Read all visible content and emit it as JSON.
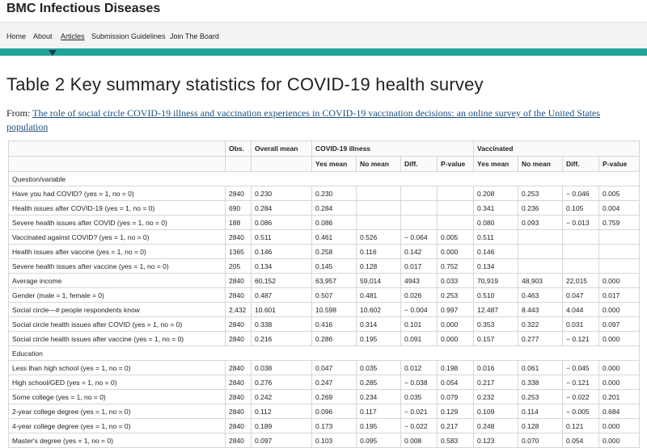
{
  "header": {
    "site_title": "BMC Infectious Diseases",
    "nav": [
      "Home",
      "About",
      "Articles",
      "Submission Guidelines",
      "Join The Board"
    ],
    "active_nav": 2
  },
  "article": {
    "title": "Table 2 Key summary statistics for COVID-19 health survey",
    "from_label": "From:",
    "from_link": "The role of social circle COVID-19 illness and vaccination experiences in COVID-19 vaccination decisions: an online survey of the United States population"
  },
  "table": {
    "header_top": [
      "Obs.",
      "Overall mean",
      "COVID-19 illness",
      "Vaccinated"
    ],
    "header_sub": [
      "Yes mean",
      "No mean",
      "Diff.",
      "P-value",
      "Yes mean",
      "No mean",
      "Diff.",
      "P-value"
    ],
    "rows": [
      {
        "section": "Question/variable"
      },
      {
        "label": "Have you had COVID? (yes = 1, no = 0)",
        "cells": [
          "2840",
          "0.230",
          "0.230",
          null,
          null,
          null,
          "0.208",
          "0.253",
          "− 0.046",
          "0.005"
        ]
      },
      {
        "label": "Health issues after COVID-19 (yes = 1, no = 0)",
        "cells": [
          "690",
          "0.284",
          "0.284",
          null,
          null,
          null,
          "0.341",
          "0.236",
          "0.105",
          "0.004"
        ]
      },
      {
        "label": "Severe health issues after COVID (yes = 1, no = 0)",
        "cells": [
          "188",
          "0.086",
          "0.086",
          null,
          null,
          null,
          "0.080",
          "0.093",
          "− 0.013",
          "0.759"
        ]
      },
      {
        "label": "Vaccinated against COVID? (yes = 1, no = 0)",
        "cells": [
          "2840",
          "0.511",
          "0.461",
          "0.526",
          "− 0.064",
          "0.005",
          "0.511",
          null,
          null,
          null
        ]
      },
      {
        "label": "Health issues after vaccine (yes = 1, no = 0)",
        "cells": [
          "1365",
          "0.146",
          "0.258",
          "0.116",
          "0.142",
          "0.000",
          "0.146",
          null,
          null,
          null
        ]
      },
      {
        "label": "Severe health issues after vaccine (yes = 1, no = 0)",
        "cells": [
          "205",
          "0.134",
          "0.145",
          "0.128",
          "0.017",
          "0.752",
          "0.134",
          null,
          null,
          null
        ]
      },
      {
        "label": "Average income",
        "cells": [
          "2840",
          "60,152",
          "63,957",
          "59,014",
          "4943",
          "0.033",
          "70,919",
          "48,903",
          "22,015",
          "0.000"
        ]
      },
      {
        "label": "Gender (male = 1, female = 0)",
        "cells": [
          "2840",
          "0.487",
          "0.507",
          "0.481",
          "0.026",
          "0.253",
          "0.510",
          "0.463",
          "0.047",
          "0.017"
        ]
      },
      {
        "label": "Social circle—# people respondents know",
        "cells": [
          "2,432",
          "10.601",
          "10.598",
          "10.602",
          "− 0.004",
          "0.997",
          "12.487",
          "8.443",
          "4.044",
          "0.000"
        ]
      },
      {
        "label": "Social circle health issues after COVID (yes = 1, no = 0)",
        "cells": [
          "2840",
          "0.338",
          "0.416",
          "0.314",
          "0.101",
          "0.000",
          "0.353",
          "0.322",
          "0.031",
          "0.097"
        ]
      },
      {
        "label": "Social circle health issues  after vaccine (yes = 1, no = 0)",
        "cells": [
          "2840",
          "0.216",
          "0.286",
          "0.195",
          "0.091",
          "0.000",
          "0.157",
          "0.277",
          "− 0.121",
          "0.000"
        ]
      },
      {
        "section": "Education"
      },
      {
        "label": "Less than high school (yes = 1, no = 0)",
        "cells": [
          "2840",
          "0.038",
          "0.047",
          "0.035",
          "0.012",
          "0.198",
          "0.016",
          "0.061",
          "− 0.045",
          "0.000"
        ]
      },
      {
        "label": "High school/GED (yes = 1, no = 0)",
        "cells": [
          "2840",
          "0.276",
          "0.247",
          "0.285",
          "− 0.038",
          "0.054",
          "0.217",
          "0.338",
          "− 0.121",
          "0.000"
        ]
      },
      {
        "label": "Some college (yes = 1, no = 0)",
        "cells": [
          "2840",
          "0.242",
          "0.269",
          "0.234",
          "0.035",
          "0.079",
          "0.232",
          "0.253",
          "− 0.022",
          "0.201"
        ]
      },
      {
        "label": "2-year college degree (yes = 1, no = 0)",
        "cells": [
          "2840",
          "0.112",
          "0.096",
          "0.117",
          "− 0.021",
          "0.129",
          "0.109",
          "0.114",
          "− 0.005",
          "0.684"
        ]
      },
      {
        "label": "4-year college degree (yes = 1, no = 0)",
        "cells": [
          "2840",
          "0.189",
          "0.173",
          "0.195",
          "− 0.022",
          "0.217",
          "0.248",
          "0.128",
          "0.121",
          "0.000"
        ]
      },
      {
        "label": "Master's degree (yes = 1, no = 0)",
        "cells": [
          "2840",
          "0.097",
          "0.103",
          "0.095",
          "0.008",
          "0.583",
          "0.123",
          "0.070",
          "0.054",
          "0.000"
        ]
      }
    ]
  }
}
